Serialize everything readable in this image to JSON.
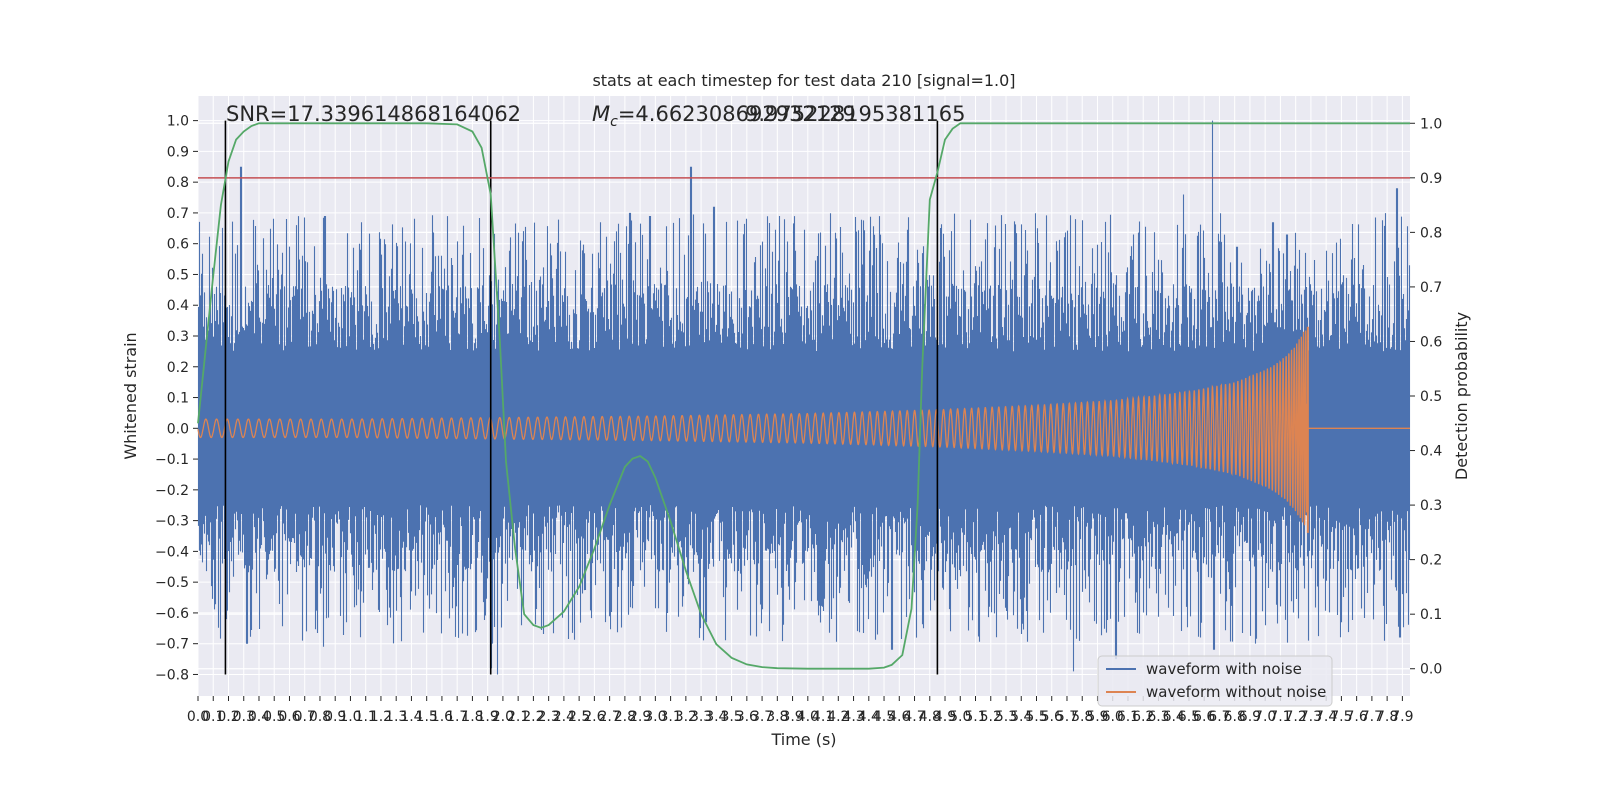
{
  "chart_data": {
    "type": "line",
    "title": "stats at each timestep for test data 210 [signal=1.0]",
    "xlabel": "Time (s)",
    "ylabel": "Whitened strain",
    "ylabel_right": "Detection probability",
    "xlim": [
      0.0,
      7.95
    ],
    "ylim": [
      -0.87,
      1.08
    ],
    "ylim_right": [
      -0.05,
      1.05
    ],
    "x_ticks": [
      "0.0",
      "0.1",
      "0.2",
      "0.3",
      "0.4",
      "0.5",
      "0.6",
      "0.7",
      "0.8",
      "0.9",
      "1.0",
      "1.1",
      "1.2",
      "1.3",
      "1.4",
      "1.5",
      "1.6",
      "1.7",
      "1.8",
      "1.9",
      "2.0",
      "2.1",
      "2.2",
      "2.3",
      "2.4",
      "2.5",
      "2.6",
      "2.7",
      "2.8",
      "2.9",
      "3.0",
      "3.1",
      "3.2",
      "3.3",
      "3.4",
      "3.5",
      "3.6",
      "3.7",
      "3.8",
      "3.9",
      "4.0",
      "4.1",
      "4.2",
      "4.3",
      "4.4",
      "4.5",
      "4.6",
      "4.7",
      "4.8",
      "4.9",
      "5.0",
      "5.1",
      "5.2",
      "5.3",
      "5.4",
      "5.5",
      "5.6",
      "5.7",
      "5.8",
      "5.9",
      "6.0",
      "6.1",
      "6.2",
      "6.3",
      "6.4",
      "6.5",
      "6.6",
      "6.7",
      "6.8",
      "6.9",
      "7.0",
      "7.1",
      "7.2",
      "7.3",
      "7.4",
      "7.5",
      "7.6",
      "7.7",
      "7.8",
      "7.9"
    ],
    "y_ticks": [
      "−0.8",
      "−0.7",
      "−0.6",
      "−0.5",
      "−0.4",
      "−0.3",
      "−0.2",
      "−0.1",
      "0.0",
      "0.1",
      "0.2",
      "0.3",
      "0.4",
      "0.5",
      "0.6",
      "0.7",
      "0.8",
      "0.9",
      "1.0"
    ],
    "y_ticks_right": [
      "0.0",
      "0.1",
      "0.2",
      "0.3",
      "0.4",
      "0.5",
      "0.6",
      "0.7",
      "0.8",
      "0.9",
      "1.0"
    ],
    "annotations": {
      "snr": "SNR=17.339614868164062",
      "mc_symbol": "M",
      "mc_sub": "c",
      "mc_value": "=4.662308692932129",
      "overlap": "9.975228195381165"
    },
    "threshold": {
      "value": 0.9,
      "axis": "right",
      "color": "#c44e52"
    },
    "vertical_lines": [
      0.18,
      1.92,
      4.85
    ],
    "series": [
      {
        "name": "waveform with noise",
        "color": "#4c72b0",
        "description": "noisy whitened strain, amplitude roughly ±0.45 with spikes to 1.0",
        "spikes": [
          [
            0.18,
            -0.62
          ],
          [
            0.28,
            0.85
          ],
          [
            0.32,
            -0.7
          ],
          [
            0.83,
            0.69
          ],
          [
            0.82,
            -0.71
          ],
          [
            1.92,
            -0.78
          ],
          [
            1.96,
            -0.8
          ],
          [
            2.83,
            0.7
          ],
          [
            2.96,
            0.69
          ],
          [
            3.23,
            0.85
          ],
          [
            3.33,
            -0.63
          ],
          [
            3.38,
            0.72
          ],
          [
            3.81,
            0.69
          ],
          [
            4.55,
            -0.72
          ],
          [
            5.74,
            -0.79
          ],
          [
            6.02,
            -0.75
          ],
          [
            6.46,
            0.76
          ],
          [
            6.65,
            1.0
          ],
          [
            6.66,
            -0.72
          ],
          [
            6.81,
            0.59
          ],
          [
            7.05,
            0.67
          ],
          [
            7.14,
            0.63
          ],
          [
            7.26,
            0.57
          ],
          [
            7.28,
            -0.69
          ],
          [
            7.86,
            0.78
          ],
          [
            7.88,
            -0.68
          ]
        ]
      },
      {
        "name": "waveform without noise",
        "color": "#dd8452",
        "description": "inspiral chirp: amplitude grows from 0.03 to 0.33, merger at ~7.28 s, then flat at 0",
        "envelope": [
          [
            0.0,
            0.03
          ],
          [
            1.0,
            0.03
          ],
          [
            2.0,
            0.035
          ],
          [
            3.0,
            0.04
          ],
          [
            4.0,
            0.048
          ],
          [
            4.85,
            0.06
          ],
          [
            5.5,
            0.075
          ],
          [
            6.0,
            0.09
          ],
          [
            6.5,
            0.12
          ],
          [
            6.8,
            0.15
          ],
          [
            7.0,
            0.19
          ],
          [
            7.1,
            0.22
          ],
          [
            7.2,
            0.27
          ],
          [
            7.27,
            0.33
          ],
          [
            7.28,
            0.0
          ],
          [
            7.95,
            0.0
          ]
        ]
      },
      {
        "name": "detection probability",
        "color": "#55a868",
        "axis": "right",
        "x": [
          0.0,
          0.1,
          0.15,
          0.2,
          0.25,
          0.3,
          0.35,
          0.4,
          0.5,
          0.6,
          0.8,
          1.0,
          1.5,
          1.7,
          1.8,
          1.86,
          1.92,
          1.98,
          2.02,
          2.08,
          2.14,
          2.2,
          2.25,
          2.3,
          2.4,
          2.5,
          2.6,
          2.7,
          2.8,
          2.85,
          2.9,
          2.95,
          3.0,
          3.1,
          3.2,
          3.3,
          3.4,
          3.5,
          3.6,
          3.7,
          3.8,
          4.0,
          4.2,
          4.4,
          4.5,
          4.55,
          4.62,
          4.68,
          4.72,
          4.75,
          4.8,
          4.85,
          4.9,
          4.95,
          5.0,
          5.1,
          7.95
        ],
        "y": [
          0.45,
          0.72,
          0.85,
          0.93,
          0.97,
          0.985,
          0.995,
          1.0,
          1.0,
          1.0,
          1.0,
          1.0,
          1.0,
          0.998,
          0.985,
          0.955,
          0.87,
          0.6,
          0.38,
          0.22,
          0.1,
          0.08,
          0.075,
          0.08,
          0.105,
          0.15,
          0.22,
          0.3,
          0.37,
          0.385,
          0.39,
          0.38,
          0.35,
          0.27,
          0.18,
          0.1,
          0.045,
          0.02,
          0.008,
          0.003,
          0.001,
          0.0,
          0.0,
          0.0,
          0.002,
          0.007,
          0.025,
          0.11,
          0.3,
          0.55,
          0.86,
          0.91,
          0.97,
          0.99,
          1.0,
          1.0,
          1.0
        ]
      }
    ],
    "legend": {
      "placement": "lower-right",
      "entries": [
        "waveform with noise",
        "waveform without noise"
      ]
    }
  }
}
